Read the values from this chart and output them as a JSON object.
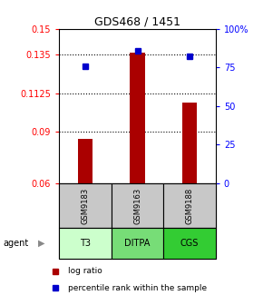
{
  "title": "GDS468 / 1451",
  "bar_positions": [
    1,
    2,
    3
  ],
  "bar_values": [
    0.086,
    0.136,
    0.107
  ],
  "bar_base": 0.06,
  "bar_color": "#aa0000",
  "dot_values": [
    0.128,
    0.137,
    0.134
  ],
  "dot_color": "#0000cc",
  "ylim_left": [
    0.06,
    0.15
  ],
  "ylim_right": [
    0,
    100
  ],
  "yticks_left": [
    0.06,
    0.09,
    0.1125,
    0.135,
    0.15
  ],
  "ytick_labels_left": [
    "0.06",
    "0.09",
    "0.1125",
    "0.135",
    "0.15"
  ],
  "yticks_right": [
    0,
    25,
    50,
    75,
    100
  ],
  "ytick_labels_right": [
    "0",
    "25",
    "50",
    "75",
    "100%"
  ],
  "gridlines": [
    0.09,
    0.1125,
    0.135
  ],
  "sample_labels": [
    "GSM9183",
    "GSM9163",
    "GSM9188"
  ],
  "agent_labels": [
    "T3",
    "DITPA",
    "CGS"
  ],
  "agent_colors": [
    "#ccffcc",
    "#77dd77",
    "#33cc33"
  ],
  "sample_bg": "#c8c8c8",
  "legend_bar_label": "log ratio",
  "legend_dot_label": "percentile rank within the sample",
  "bar_width": 0.28,
  "title_fontsize": 9,
  "tick_fontsize": 7,
  "label_fontsize": 7
}
